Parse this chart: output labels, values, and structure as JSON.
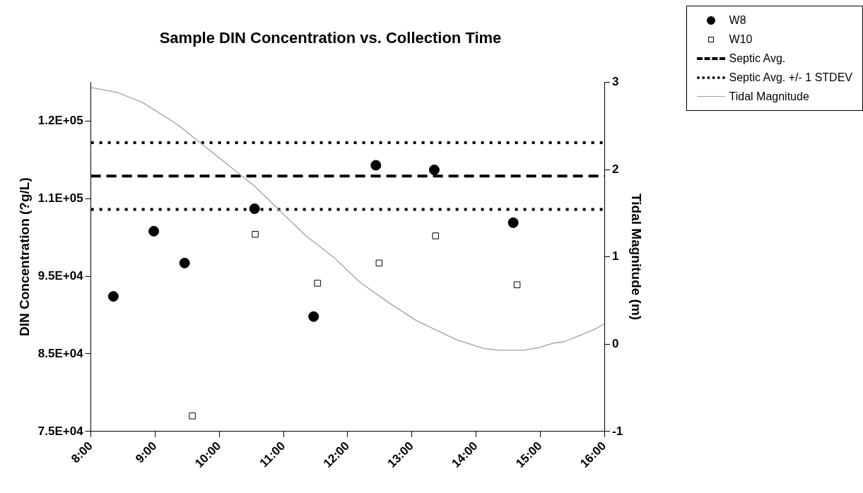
{
  "chart_data": {
    "type": "scatter",
    "title": "Sample DIN Concentration vs. Collection Time",
    "ylabel": "DIN Concentration (?g/L)",
    "y2label": "Tidal Magnitude (m)",
    "xlim": [
      8,
      16
    ],
    "xticks": [
      {
        "value": 8,
        "label": "8:00"
      },
      {
        "value": 9,
        "label": "9:00"
      },
      {
        "value": 10,
        "label": "10:00"
      },
      {
        "value": 11,
        "label": "11:00"
      },
      {
        "value": 12,
        "label": "12:00"
      },
      {
        "value": 13,
        "label": "13:00"
      },
      {
        "value": 14,
        "label": "14:00"
      },
      {
        "value": 15,
        "label": "15:00"
      },
      {
        "value": 16,
        "label": "16:00"
      }
    ],
    "ylim": [
      75000,
      120000
    ],
    "yticks": [
      {
        "value": 75000,
        "label": "7.5E+04"
      },
      {
        "value": 85000,
        "label": "8.5E+04"
      },
      {
        "value": 95000,
        "label": "9.5E+04"
      },
      {
        "value": 105000,
        "label": "1.1E+05"
      },
      {
        "value": 115000,
        "label": "1.2E+05"
      }
    ],
    "y2lim": [
      -1,
      3
    ],
    "y2ticks": [
      -1,
      0,
      1,
      2,
      3
    ],
    "series": [
      {
        "name": "W8",
        "type": "scatter",
        "marker": "circle",
        "color": "#000000",
        "x": [
          8.35,
          8.98,
          9.46,
          10.55,
          11.47,
          12.44,
          13.35,
          14.58
        ],
        "values": [
          92400,
          100800,
          96700,
          103700,
          89800,
          109300,
          108700,
          101900
        ]
      },
      {
        "name": "W10",
        "type": "scatter",
        "marker": "square",
        "color": "#000000",
        "x": [
          9.58,
          10.56,
          11.53,
          12.49,
          13.37,
          14.64
        ],
        "values": [
          77000,
          100400,
          94100,
          96700,
          100200,
          93900
        ]
      },
      {
        "name": "Tidal Magnitude",
        "type": "line",
        "axis": "y2",
        "marker": "none",
        "color": "#a0a0a0",
        "x": [
          8,
          8.42,
          8.8,
          9.34,
          10.14,
          10.55,
          11.35,
          11.79,
          12.19,
          12.65,
          13.07,
          13.7,
          14.12,
          14.36,
          14.74,
          14.98,
          15.2,
          15.38,
          15.62,
          15.82,
          16
        ],
        "values": [
          2.94,
          2.88,
          2.77,
          2.52,
          2.05,
          1.81,
          1.24,
          0.99,
          0.71,
          0.47,
          0.27,
          0.05,
          -0.05,
          -0.07,
          -0.07,
          -0.04,
          0.01,
          0.03,
          0.1,
          0.16,
          0.23
        ]
      }
    ],
    "ref_lines": [
      {
        "axis": "y",
        "value": 107900,
        "label": "Septic Avg.",
        "line_style": "dashed",
        "color": "#000000"
      },
      {
        "axis": "y",
        "value": 112200,
        "label": "Septic Avg. +/- 1 STDEV",
        "line_style": "dotted",
        "color": "#000000"
      },
      {
        "axis": "y",
        "value": 103600,
        "label": null,
        "line_style": "dotted",
        "color": "#000000"
      }
    ],
    "grid": false,
    "legend": "top right"
  }
}
